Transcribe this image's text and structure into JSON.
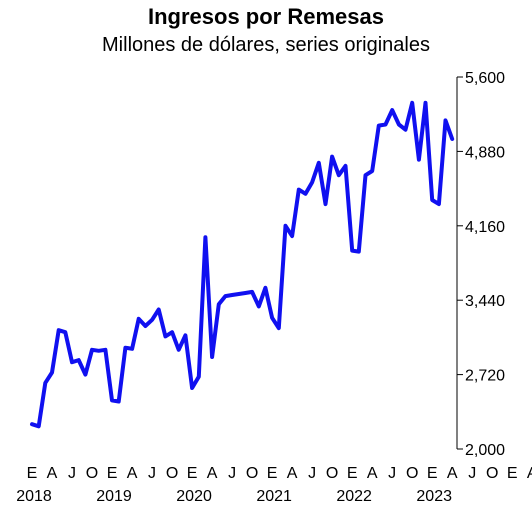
{
  "chart_data": {
    "type": "line",
    "title": "Ingresos por Remesas",
    "subtitle": "Millones de dólares, series originales",
    "xlabel": "",
    "ylabel": "",
    "ylim": [
      2000,
      5600
    ],
    "y_ticks": [
      "2,000",
      "2,720",
      "3,440",
      "4,160",
      "4,880",
      "5,600"
    ],
    "x_month_labels": [
      "E",
      "A",
      "J",
      "O",
      "E",
      "A",
      "J",
      "O",
      "E",
      "A",
      "J",
      "O",
      "E",
      "A",
      "J",
      "O",
      "E",
      "A",
      "J",
      "O",
      "E",
      "A",
      "J",
      "O",
      "E",
      "A"
    ],
    "x_year_labels": [
      "2018",
      "2019",
      "2020",
      "2021",
      "2022",
      "2023"
    ],
    "grid": false,
    "legend": "none",
    "line_color": "#1010f0",
    "series": [
      {
        "x": [
          "2018-01",
          "2018-02",
          "2018-03",
          "2018-04",
          "2018-05",
          "2018-06",
          "2018-07",
          "2018-08",
          "2018-09",
          "2018-10",
          "2018-11",
          "2018-12",
          "2019-01",
          "2019-02",
          "2019-03",
          "2019-04",
          "2019-05",
          "2019-06",
          "2019-07",
          "2019-08",
          "2019-09",
          "2019-10",
          "2019-11",
          "2019-12",
          "2020-01",
          "2020-02",
          "2020-03",
          "2020-04",
          "2020-05",
          "2020-06",
          "2020-07",
          "2020-08",
          "2020-09",
          "2020-10",
          "2020-11",
          "2020-12",
          "2021-01",
          "2021-02",
          "2021-03",
          "2021-04",
          "2021-05",
          "2021-06",
          "2021-07",
          "2021-08",
          "2021-09",
          "2021-10",
          "2021-11",
          "2021-12",
          "2022-01",
          "2022-02",
          "2022-03",
          "2022-04",
          "2022-05",
          "2022-06",
          "2022-07",
          "2022-08",
          "2022-09",
          "2022-10",
          "2022-11",
          "2022-12",
          "2023-01",
          "2023-02",
          "2023-03",
          "2023-04"
        ],
        "values": [
          2240,
          2220,
          2640,
          2740,
          3150,
          3130,
          2840,
          2860,
          2720,
          2960,
          2950,
          2960,
          2470,
          2460,
          2980,
          2970,
          3260,
          3190,
          3250,
          3350,
          3090,
          3130,
          2960,
          3100,
          2590,
          2700,
          4050,
          2890,
          3400,
          3480,
          3490,
          3500,
          3510,
          3520,
          3380,
          3560,
          3270,
          3170,
          4160,
          4060,
          4510,
          4470,
          4580,
          4770,
          4370,
          4830,
          4650,
          4740,
          3920,
          3910,
          4650,
          4690,
          5130,
          5140,
          5280,
          5140,
          5090,
          5350,
          4800,
          5350,
          4410,
          4370,
          5180,
          5000
        ]
      }
    ]
  }
}
